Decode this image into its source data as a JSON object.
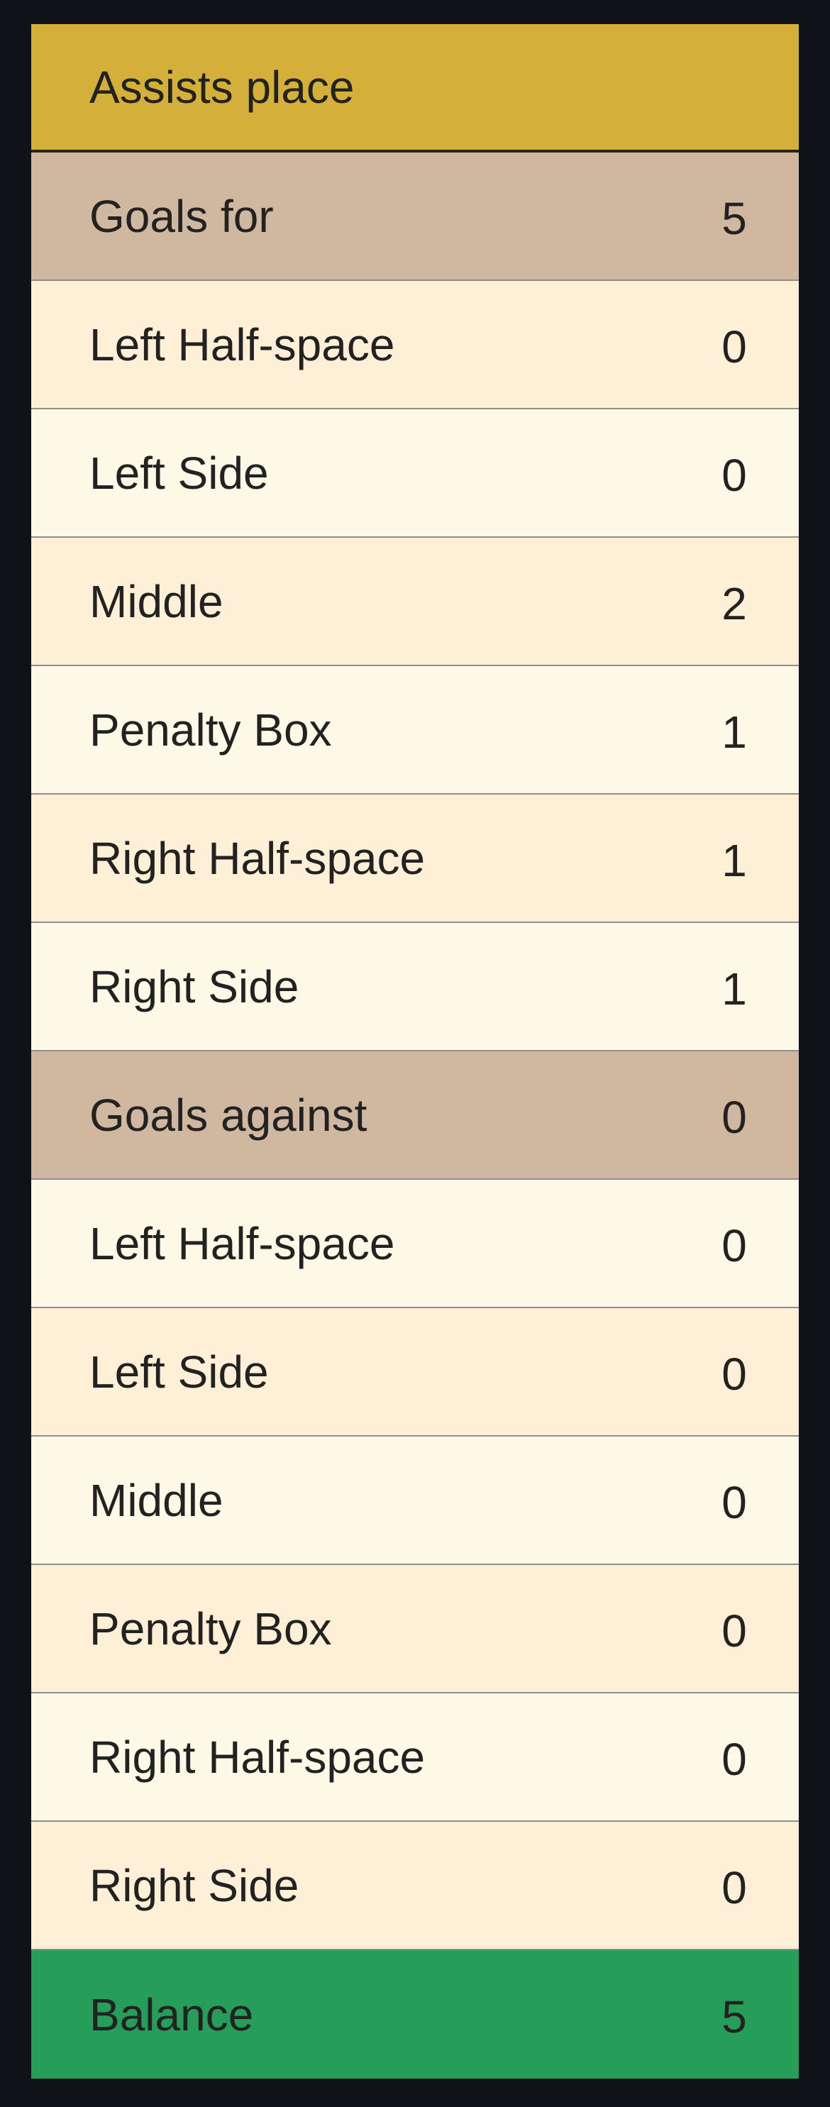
{
  "table": {
    "header": "Assists place",
    "rows": [
      {
        "label": "Goals for",
        "value": "5",
        "kind": "group"
      },
      {
        "label": "Left Half-space",
        "value": "0",
        "kind": "alt-a"
      },
      {
        "label": "Left Side",
        "value": "0",
        "kind": "alt-b"
      },
      {
        "label": "Middle",
        "value": "2",
        "kind": "alt-a"
      },
      {
        "label": "Penalty Box",
        "value": "1",
        "kind": "alt-b"
      },
      {
        "label": "Right Half-space",
        "value": "1",
        "kind": "alt-a"
      },
      {
        "label": "Right Side",
        "value": "1",
        "kind": "alt-b"
      },
      {
        "label": "Goals against",
        "value": "0",
        "kind": "group"
      },
      {
        "label": "Left Half-space",
        "value": "0",
        "kind": "alt-b"
      },
      {
        "label": "Left Side",
        "value": "0",
        "kind": "alt-a"
      },
      {
        "label": "Middle",
        "value": "0",
        "kind": "alt-b"
      },
      {
        "label": "Penalty Box",
        "value": "0",
        "kind": "alt-a"
      },
      {
        "label": "Right Half-space",
        "value": "0",
        "kind": "alt-b"
      },
      {
        "label": "Right Side",
        "value": "0",
        "kind": "alt-a"
      }
    ],
    "total": {
      "label": "Balance",
      "value": "5"
    }
  },
  "colors": {
    "background": "#0f1219",
    "header": "#d4b03a",
    "group": "#cfb7a0",
    "row_a": "#fdf0d7",
    "row_b": "#fef9e6",
    "total": "#269e5a"
  }
}
